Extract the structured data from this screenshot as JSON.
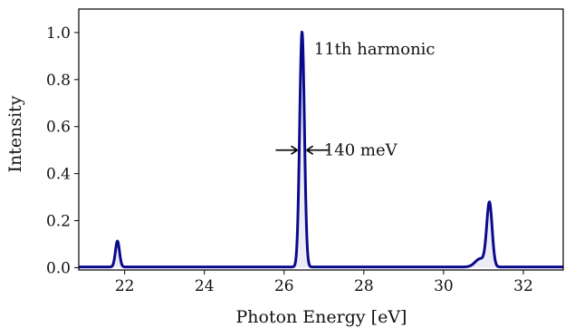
{
  "chart_data": {
    "type": "line",
    "title": "",
    "xlabel": "Photon Energy [eV]",
    "ylabel": "Intensity",
    "xlim": [
      20.85,
      33.0
    ],
    "ylim": [
      -0.01,
      1.1
    ],
    "x_ticks": [
      "22",
      "24",
      "26",
      "28",
      "30",
      "32"
    ],
    "y_ticks": [
      "0.0",
      "0.2",
      "0.4",
      "0.6",
      "0.8",
      "1.0"
    ],
    "grid": false,
    "legend": "none",
    "series": [
      {
        "line_color": "#0a0a8c",
        "fill_color": "#ececf6",
        "peaks": [
          {
            "center": 21.82,
            "height": 0.11,
            "fwhm": 0.12
          },
          {
            "center": 26.45,
            "height": 1.0,
            "fwhm": 0.14
          },
          {
            "center": 31.15,
            "height": 0.27,
            "fwhm": 0.16
          }
        ],
        "shoulders": [
          {
            "center": 30.92,
            "height": 0.035,
            "fwhm": 0.3
          }
        ],
        "baseline": 0.003
      }
    ],
    "annotations": [
      {
        "text": "11th harmonic",
        "x": 26.75,
        "y": 0.93
      },
      {
        "text": "140 meV",
        "x": 27.0,
        "y": 0.5
      }
    ],
    "fwhm_marker": {
      "y": 0.5,
      "left": 26.38,
      "right": 26.52
    }
  }
}
